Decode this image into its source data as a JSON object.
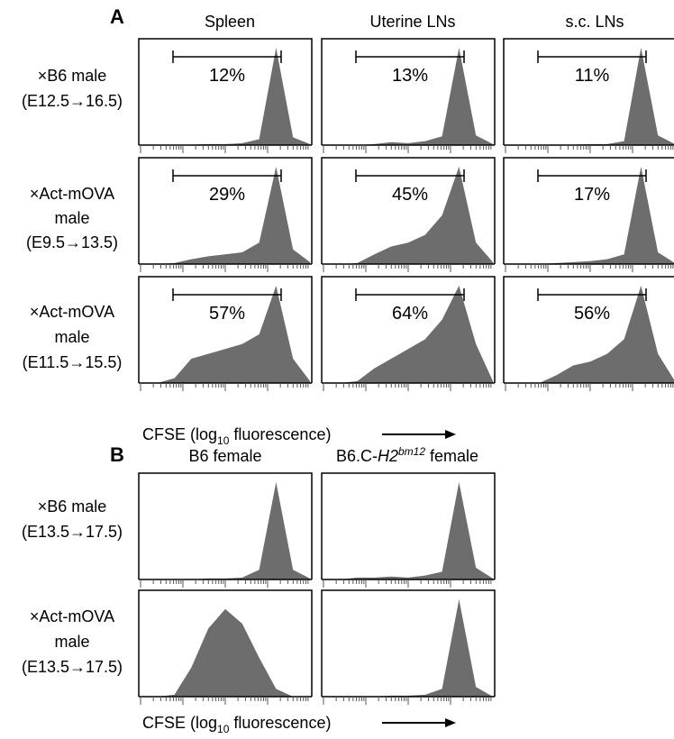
{
  "panels": {
    "A": {
      "letter": "A",
      "columns": [
        "Spleen",
        "Uterine LNs",
        "s.c. LNs"
      ],
      "rows": [
        [
          "×B6 male",
          "(E12.5→16.5)"
        ],
        [
          "×Act-mOVA",
          "male",
          "(E9.5→13.5)"
        ],
        [
          "×Act-mOVA",
          "male",
          "(E11.5→15.5)"
        ]
      ],
      "percentages": [
        [
          "12%",
          "13%",
          "11%"
        ],
        [
          "29%",
          "45%",
          "17%"
        ],
        [
          "57%",
          "64%",
          "56%"
        ]
      ]
    },
    "B": {
      "letter": "B",
      "columns": [
        "B6 female",
        "B6.C-",
        "H2",
        "bm12",
        " female"
      ],
      "rows": [
        [
          "×B6 male",
          "(E13.5→17.5)"
        ],
        [
          "×Act-mOVA",
          "male",
          "(E13.5→17.5)"
        ]
      ]
    }
  },
  "xaxis": {
    "label_pre": "CFSE (log",
    "label_sub": "10",
    "label_post": " fluorescence)"
  },
  "colors": {
    "fill": "#6d6d6d",
    "axis": "#000000"
  },
  "chart_data": [
    {
      "type": "area",
      "title": "Spleen – ×B6 male (E12.5→16.5)",
      "gate_label": "12%",
      "x": [
        0,
        1,
        2,
        3,
        4,
        5,
        6,
        7,
        8,
        9,
        10
      ],
      "y": [
        0,
        0,
        0,
        0.5,
        1,
        1,
        2,
        6,
        100,
        8,
        1
      ]
    },
    {
      "type": "area",
      "title": "Uterine LNs – ×B6 male (E12.5→16.5)",
      "gate_label": "13%",
      "x": [
        0,
        1,
        2,
        3,
        4,
        5,
        6,
        7,
        8,
        9,
        10
      ],
      "y": [
        0,
        0,
        0,
        1,
        3,
        2,
        4,
        9,
        100,
        10,
        1
      ]
    },
    {
      "type": "area",
      "title": "s.c. LNs – ×B6 male (E12.5→16.5)",
      "gate_label": "11%",
      "x": [
        0,
        1,
        2,
        3,
        4,
        5,
        6,
        7,
        8,
        9,
        10
      ],
      "y": [
        0,
        0,
        0,
        0,
        0.5,
        1,
        1,
        4,
        100,
        10,
        1
      ]
    },
    {
      "type": "area",
      "title": "Spleen – ×Act-mOVA male (E9.5→13.5)",
      "gate_label": "29%",
      "x": [
        0,
        1,
        2,
        3,
        4,
        5,
        6,
        7,
        8,
        9,
        10
      ],
      "y": [
        0,
        0,
        1,
        5,
        8,
        10,
        12,
        22,
        100,
        15,
        2
      ]
    },
    {
      "type": "area",
      "title": "Uterine LNs – ×Act-mOVA male (E9.5→13.5)",
      "gate_label": "45%",
      "x": [
        0,
        1,
        2,
        3,
        4,
        5,
        6,
        7,
        8,
        9,
        10
      ],
      "y": [
        0,
        0,
        1,
        10,
        18,
        22,
        30,
        50,
        100,
        22,
        2
      ]
    },
    {
      "type": "area",
      "title": "s.c. LNs – ×Act-mOVA male (E9.5→13.5)",
      "gate_label": "17%",
      "x": [
        0,
        1,
        2,
        3,
        4,
        5,
        6,
        7,
        8,
        9,
        10
      ],
      "y": [
        0,
        0,
        0,
        1,
        2,
        3,
        5,
        10,
        100,
        12,
        1
      ]
    },
    {
      "type": "area",
      "title": "Spleen – ×Act-mOVA male (E11.5→15.5)",
      "gate_label": "57%",
      "x": [
        0,
        1,
        2,
        3,
        4,
        5,
        6,
        7,
        8,
        9,
        10
      ],
      "y": [
        0,
        0,
        5,
        25,
        30,
        35,
        40,
        50,
        100,
        25,
        2
      ]
    },
    {
      "type": "area",
      "title": "Uterine LNs – ×Act-mOVA male (E11.5→15.5)",
      "gate_label": "64%",
      "x": [
        0,
        1,
        2,
        3,
        4,
        5,
        6,
        7,
        8,
        9,
        10
      ],
      "y": [
        0,
        0,
        2,
        15,
        25,
        35,
        45,
        65,
        100,
        40,
        2
      ]
    },
    {
      "type": "area",
      "title": "s.c. LNs – ×Act-mOVA male (E11.5→15.5)",
      "gate_label": "56%",
      "x": [
        0,
        1,
        2,
        3,
        4,
        5,
        6,
        7,
        8,
        9,
        10
      ],
      "y": [
        0,
        0,
        0,
        8,
        18,
        22,
        30,
        45,
        100,
        30,
        2
      ]
    },
    {
      "type": "area",
      "title": "B6 female – ×B6 male (E13.5→17.5)",
      "x": [
        0,
        1,
        2,
        3,
        4,
        5,
        6,
        7,
        8,
        9,
        10
      ],
      "y": [
        0,
        0,
        0,
        0,
        1,
        1,
        2,
        10,
        100,
        10,
        1
      ]
    },
    {
      "type": "area",
      "title": "B6.C-H2bm12 female – ×B6 male (E13.5→17.5)",
      "x": [
        0,
        1,
        2,
        3,
        4,
        5,
        6,
        7,
        8,
        9,
        10
      ],
      "y": [
        0,
        0,
        2,
        2,
        3,
        2,
        4,
        8,
        100,
        12,
        1
      ]
    },
    {
      "type": "area",
      "title": "B6 female – ×Act-mOVA male (E13.5→17.5)",
      "x": [
        0,
        1,
        2,
        3,
        4,
        5,
        6,
        7,
        8,
        9,
        10
      ],
      "y": [
        0,
        0,
        2,
        30,
        70,
        90,
        75,
        40,
        8,
        0,
        0
      ]
    },
    {
      "type": "area",
      "title": "B6.C-H2bm12 female – ×Act-mOVA male (E13.5→17.5)",
      "x": [
        0,
        1,
        2,
        3,
        4,
        5,
        6,
        7,
        8,
        9,
        10
      ],
      "y": [
        0,
        0,
        0,
        0,
        1,
        1,
        2,
        8,
        100,
        10,
        0
      ]
    }
  ]
}
